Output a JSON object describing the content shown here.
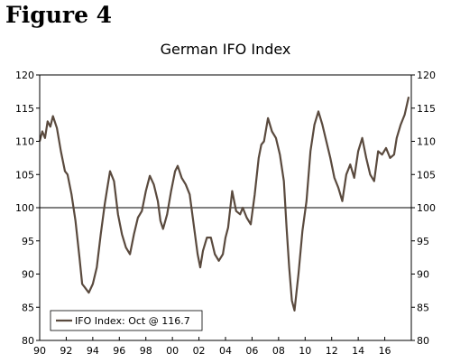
{
  "figure_label": "Figure 4",
  "chart_data": {
    "type": "line",
    "title": "German IFO Index",
    "xlabel": "",
    "ylabel": "",
    "ylim": [
      80,
      120
    ],
    "yticks": [
      80,
      85,
      90,
      95,
      100,
      105,
      110,
      115,
      120
    ],
    "xlim": [
      1990,
      2018
    ],
    "xtick_labels": [
      "90",
      "92",
      "94",
      "96",
      "98",
      "00",
      "02",
      "04",
      "06",
      "08",
      "10",
      "12",
      "14",
      "16"
    ],
    "reference_line": 100,
    "grid": false,
    "legend_position": "bottom-left",
    "line_color": "#5a4a3e",
    "series": [
      {
        "name": "IFO Index: Oct @ 116.7",
        "x": [
          1990.0,
          1990.2,
          1990.4,
          1990.6,
          1990.8,
          1991.0,
          1991.3,
          1991.6,
          1991.9,
          1992.1,
          1992.4,
          1992.7,
          1993.0,
          1993.2,
          1993.4,
          1993.7,
          1994.0,
          1994.3,
          1994.6,
          1994.9,
          1995.1,
          1995.3,
          1995.6,
          1995.9,
          1996.2,
          1996.5,
          1996.8,
          1997.1,
          1997.4,
          1997.7,
          1998.0,
          1998.3,
          1998.6,
          1998.9,
          1999.1,
          1999.3,
          1999.6,
          1999.9,
          2000.2,
          2000.4,
          2000.7,
          2001.0,
          2001.3,
          2001.6,
          2001.9,
          2002.1,
          2002.3,
          2002.6,
          2002.9,
          2003.2,
          2003.5,
          2003.8,
          2004.0,
          2004.2,
          2004.5,
          2004.8,
          2005.1,
          2005.3,
          2005.6,
          2005.9,
          2006.2,
          2006.5,
          2006.7,
          2006.9,
          2007.2,
          2007.5,
          2007.8,
          2008.1,
          2008.4,
          2008.6,
          2008.8,
          2009.0,
          2009.2,
          2009.5,
          2009.8,
          2010.1,
          2010.4,
          2010.7,
          2011.0,
          2011.3,
          2011.6,
          2011.9,
          2012.2,
          2012.5,
          2012.8,
          2013.1,
          2013.4,
          2013.7,
          2014.0,
          2014.3,
          2014.6,
          2014.9,
          2015.2,
          2015.5,
          2015.8,
          2016.1,
          2016.4,
          2016.7,
          2016.9,
          2017.2,
          2017.5,
          2017.8
        ],
        "values": [
          110.0,
          111.5,
          110.5,
          113.0,
          112.2,
          113.8,
          112.0,
          108.5,
          105.5,
          105.0,
          102.0,
          98.0,
          92.5,
          88.5,
          88.0,
          87.2,
          88.5,
          91.0,
          96.0,
          100.5,
          103.0,
          105.5,
          104.0,
          99.0,
          96.0,
          94.0,
          93.0,
          96.0,
          98.5,
          99.5,
          102.5,
          104.8,
          103.5,
          101.0,
          98.0,
          96.8,
          99.0,
          102.5,
          105.5,
          106.3,
          104.5,
          103.5,
          102.0,
          97.5,
          93.0,
          91.0,
          93.5,
          95.5,
          95.5,
          93.0,
          92.0,
          93.0,
          95.5,
          97.0,
          102.5,
          99.5,
          99.0,
          100.0,
          98.5,
          97.5,
          102.0,
          107.5,
          109.5,
          110.0,
          113.5,
          111.5,
          110.5,
          108.0,
          104.0,
          97.0,
          91.0,
          86.0,
          84.5,
          90.0,
          96.5,
          101.0,
          108.5,
          112.5,
          114.5,
          112.5,
          110.0,
          107.5,
          104.5,
          103.0,
          101.0,
          105.0,
          106.5,
          104.5,
          108.5,
          110.5,
          107.5,
          105.0,
          104.0,
          108.5,
          108.0,
          109.0,
          107.5,
          108.0,
          110.5,
          112.5,
          114.0,
          116.7
        ]
      }
    ]
  }
}
